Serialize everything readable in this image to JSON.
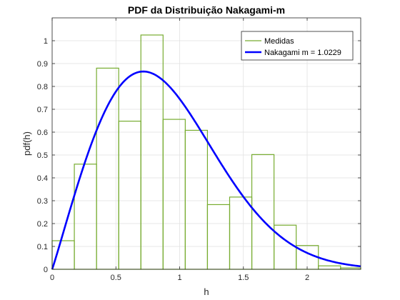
{
  "chart_data": {
    "type": "bar",
    "title": "PDF da Distribuição Nakagami-m",
    "xlabel": "h",
    "ylabel": "pdf(h)",
    "xlim": [
      0,
      2.42
    ],
    "ylim": [
      0,
      1.1
    ],
    "xticks": [
      0,
      0.5,
      1,
      1.5,
      2
    ],
    "xtick_labels": [
      "0",
      "0.5",
      "1",
      "1.5",
      "2"
    ],
    "yticks": [
      0,
      0.1,
      0.2,
      0.3,
      0.4,
      0.5,
      0.6,
      0.7,
      0.8,
      0.9,
      1
    ],
    "ytick_labels": [
      "0",
      "0.1",
      "0.2",
      "0.3",
      "0.4",
      "0.5",
      "0.6",
      "0.7",
      "0.8",
      "0.9",
      "1"
    ],
    "grid": true,
    "legend_location": "top-right",
    "series": [
      {
        "name": "Medidas",
        "type": "histogram-stairs",
        "color": "#77ac30",
        "bin_edges": [
          0,
          0.174,
          0.348,
          0.522,
          0.696,
          0.87,
          1.044,
          1.218,
          1.392,
          1.566,
          1.74,
          1.914,
          2.088,
          2.262,
          2.436
        ],
        "values": [
          0.125,
          0.46,
          0.88,
          0.648,
          1.025,
          0.656,
          0.608,
          0.283,
          0.316,
          0.502,
          0.193,
          0.104,
          0.015,
          0.006
        ]
      },
      {
        "name": "Nakagami m = 1.0229",
        "type": "line",
        "color": "#0000ff",
        "m": 1.0229,
        "omega": 1.0
      }
    ]
  }
}
